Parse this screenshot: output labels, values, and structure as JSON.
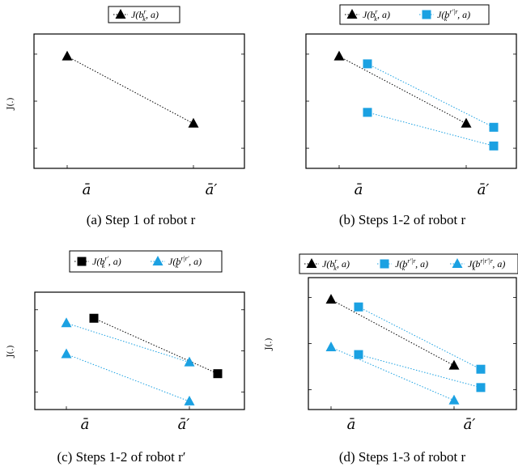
{
  "colors": {
    "black": "#000000",
    "cyan": "#1ba1e2"
  },
  "chart_data": [
    {
      "type": "line",
      "caption": "(a)  Step 1 of robot r",
      "ylabel": "J(.)",
      "categories": [
        "ā",
        "ā′"
      ],
      "legend": [
        "J(b_k^r, a)"
      ],
      "series": [
        {
          "name": "J(b_k^r, a)",
          "color": "#000000",
          "marker": "triangle",
          "x": [
            0,
            1
          ],
          "y": [
            3.0,
            1.2
          ]
        }
      ],
      "ylim": [
        0,
        3.6
      ]
    },
    {
      "type": "line",
      "caption": "(b)  Steps 1-2 of robot r",
      "ylabel": "",
      "categories": [
        "ā",
        "ā′"
      ],
      "legend": [
        "J(b_k^r, a)",
        "J(b_k^{r′|r}, a)"
      ],
      "series": [
        {
          "name": "J(b_k^r, a)",
          "color": "#000000",
          "marker": "triangle",
          "x": [
            0,
            1
          ],
          "y": [
            3.0,
            1.2
          ]
        },
        {
          "name": "J(b_k^{r′|r}, a)",
          "color": "#1ba1e2",
          "marker": "square",
          "x": [
            0.22,
            1.22
          ],
          "y": [
            2.8,
            1.1
          ]
        },
        {
          "name": "J(b_k^{r′|r}, a)",
          "color": "#1ba1e2",
          "marker": "square",
          "x": [
            0.22,
            1.22
          ],
          "y": [
            1.5,
            0.6
          ]
        }
      ],
      "ylim": [
        0,
        3.6
      ]
    },
    {
      "type": "line",
      "caption": "(c)  Steps 1-2 of robot r′",
      "ylabel": "J(.)",
      "categories": [
        "ā",
        "ā′"
      ],
      "legend": [
        "J(b_k^{r′}, a)",
        "J(b_k^{r|r′}, a)"
      ],
      "series": [
        {
          "name": "J(b_k^{r′}, a)",
          "color": "#000000",
          "marker": "square",
          "x": [
            0.22,
            1.22
          ],
          "y": [
            2.8,
            1.1
          ]
        },
        {
          "name": "J(b_k^{r|r′}, a)",
          "color": "#1ba1e2",
          "marker": "triangle",
          "x": [
            0,
            1
          ],
          "y": [
            2.65,
            1.45
          ]
        },
        {
          "name": "J(b_k^{r|r′}, a)",
          "color": "#1ba1e2",
          "marker": "triangle",
          "x": [
            0,
            1
          ],
          "y": [
            1.7,
            0.25
          ]
        }
      ],
      "ylim": [
        0,
        3.6
      ]
    },
    {
      "type": "line",
      "caption": "(d)  Steps 1-3 of robot r",
      "ylabel": "J(.)",
      "categories": [
        "ā",
        "ā′"
      ],
      "legend": [
        "J(b_k^r, a)",
        "J(b_k^{r′|r}, a)",
        "J(b_k^{r|r′|r}, a)"
      ],
      "series": [
        {
          "name": "J(b_k^r, a)",
          "color": "#000000",
          "marker": "triangle",
          "x": [
            0,
            1
          ],
          "y": [
            3.0,
            1.2
          ]
        },
        {
          "name": "J(b_k^{r′|r}, a)",
          "color": "#1ba1e2",
          "marker": "square",
          "x": [
            0.22,
            1.22
          ],
          "y": [
            2.8,
            1.1
          ]
        },
        {
          "name": "J(b_k^{r′|r}, a)",
          "color": "#1ba1e2",
          "marker": "square",
          "x": [
            0.22,
            1.22
          ],
          "y": [
            1.5,
            0.6
          ]
        },
        {
          "name": "J(b_k^{r|r′|r}, a)",
          "color": "#1ba1e2",
          "marker": "triangle",
          "x": [
            0,
            1
          ],
          "y": [
            1.7,
            0.25
          ]
        }
      ],
      "ylim": [
        0,
        3.6
      ]
    }
  ]
}
